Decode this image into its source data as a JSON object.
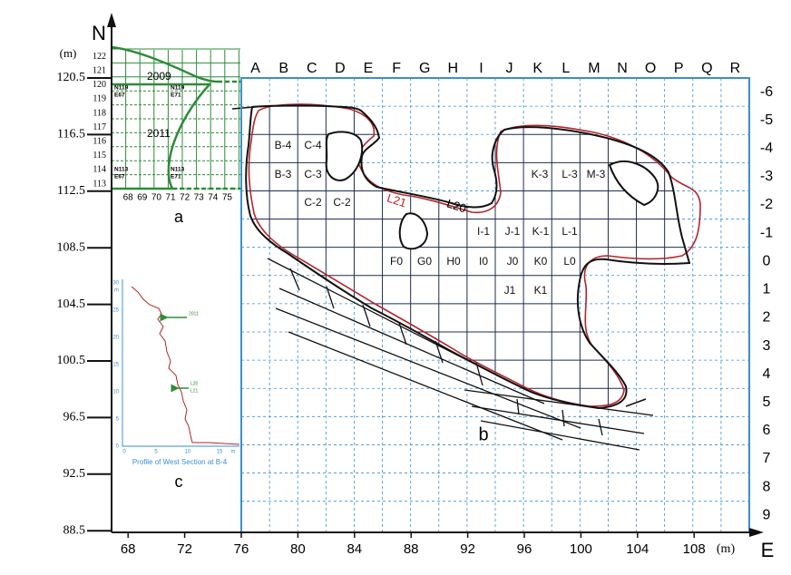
{
  "north": "N",
  "unit_left": "(m)",
  "left_axis": {
    "ticks": [
      120.5,
      116.5,
      112.5,
      108.5,
      104.5,
      100.5,
      96.5,
      92.5,
      88.5
    ]
  },
  "bottom_axis": {
    "ticks": [
      68,
      72,
      76,
      80,
      84,
      88,
      92,
      96,
      100,
      104,
      108
    ],
    "unit": "(m)",
    "label": "E"
  },
  "grid_columns": [
    "A",
    "B",
    "C",
    "D",
    "E",
    "F",
    "G",
    "H",
    "I",
    "J",
    "K",
    "L",
    "M",
    "N",
    "O",
    "P",
    "Q",
    "R"
  ],
  "grid_rows": [
    -6,
    -5,
    -4,
    -3,
    -2,
    -1,
    0,
    1,
    2,
    3,
    4,
    5,
    6,
    7,
    8,
    9
  ],
  "inset_a": {
    "label": "a",
    "yticks": [
      122,
      121,
      120,
      119,
      118,
      117,
      116,
      115,
      114,
      113
    ],
    "xticks": [
      68,
      69,
      70,
      71,
      72,
      73,
      74,
      75
    ],
    "years": [
      "2009",
      "2011"
    ],
    "corners": [
      {
        "n": "N119",
        "e": "E67"
      },
      {
        "n": "N119",
        "e": "E71"
      },
      {
        "n": "N113",
        "e": "E67"
      },
      {
        "n": "N113",
        "e": "E71"
      }
    ]
  },
  "inset_b": {
    "label": "b",
    "cells": [
      "B-4",
      "C-4",
      "B-3",
      "C-3",
      "C-2",
      "C-2",
      "K-3",
      "L-3",
      "M-3",
      "I-1",
      "J-1",
      "K-1",
      "L-1",
      "F0",
      "G0",
      "H0",
      "I0",
      "J0",
      "K0",
      "L0",
      "J1",
      "K1"
    ],
    "layers": [
      "L20",
      "L21"
    ]
  },
  "inset_c": {
    "label": "c",
    "title": "Profile of West Section at B-4",
    "yticks": [
      0,
      5,
      10,
      15,
      20,
      25,
      30
    ],
    "xticks": [
      0,
      5,
      10,
      15
    ],
    "y_unit": "m",
    "x_unit": "m",
    "markers": [
      "2011",
      "L20",
      "L21"
    ]
  }
}
